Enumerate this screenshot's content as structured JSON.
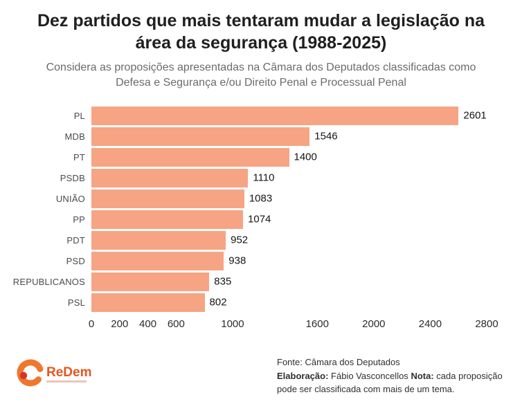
{
  "header": {
    "title": "Dez partidos que mais tentaram mudar a legislação na área da segurança (1988-2025)",
    "subtitle": "Considera as proposições apresentadas na Câmara dos Deputados classificadas como Defesa e Segurança e/ou Direito Penal e Processual Penal"
  },
  "logo": {
    "text": "ReDem"
  },
  "footer": {
    "fonte": "Fonte: Câmara dos Deputados",
    "elaboracao_label": "Elaboração:",
    "elaboracao_text": "Fábio Vasconcellos",
    "nota_label": "Nota:",
    "nota_text": "cada proposição pode ser classificada com mais de um tema."
  },
  "chart_data": {
    "type": "bar",
    "orientation": "horizontal",
    "title": "Dez partidos que mais tentaram mudar a legislação na área da segurança (1988-2025)",
    "subtitle": "Considera as proposições apresentadas na Câmara dos Deputados classificadas como Defesa e Segurança e/ou Direito Penal e Processual Penal",
    "categories": [
      "PL",
      "MDB",
      "PT",
      "PSDB",
      "UNIÃO",
      "PP",
      "PDT",
      "PSD",
      "REPUBLICANOS",
      "PSL"
    ],
    "values": [
      2601,
      1546,
      1400,
      1110,
      1083,
      1074,
      952,
      938,
      835,
      802
    ],
    "xlim": [
      0,
      2800
    ],
    "xticks": [
      0,
      200,
      400,
      600,
      1000,
      1600,
      2000,
      2400,
      2800
    ],
    "grid": false,
    "value_labels": true,
    "bar_color": "#f6a484",
    "legend": "none"
  }
}
